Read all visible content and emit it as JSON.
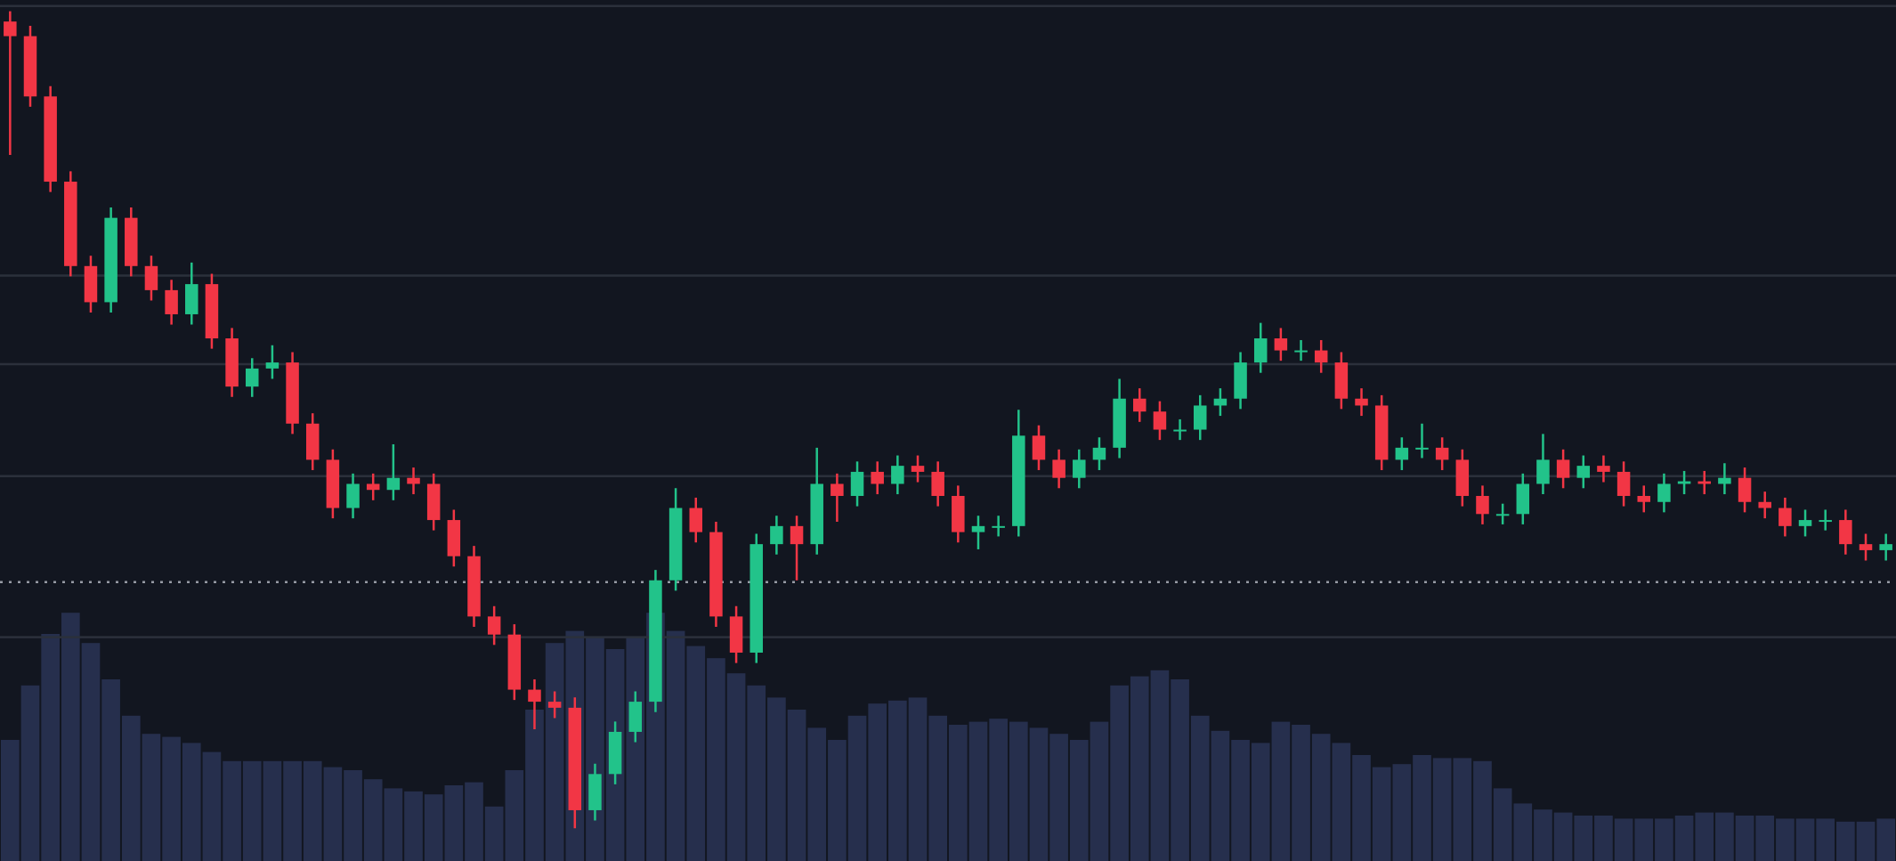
{
  "chart_data": {
    "type": "candlestick",
    "open": [
      97.5,
      95.8,
      88.8,
      78.9,
      69.1,
      64.9,
      74.7,
      69.1,
      66.3,
      63.5,
      67.0,
      60.7,
      55.1,
      57.2,
      57.9,
      50.8,
      46.6,
      41.0,
      43.8,
      43.1,
      44.5,
      43.8,
      39.6,
      35.4,
      28.4,
      26.3,
      19.9,
      18.5,
      17.8,
      5.9,
      10.1,
      15.0,
      18.5,
      32.6,
      41.0,
      38.2,
      28.4,
      24.2,
      36.8,
      38.9,
      36.8,
      43.8,
      42.4,
      45.2,
      43.8,
      45.9,
      45.2,
      42.4,
      38.2,
      38.9,
      38.9,
      49.4,
      46.6,
      44.5,
      46.6,
      48.0,
      53.7,
      52.2,
      50.1,
      50.1,
      52.9,
      53.7,
      57.9,
      60.7,
      59.3,
      59.3,
      57.9,
      53.7,
      52.9,
      46.6,
      48.0,
      48.0,
      46.6,
      42.4,
      40.3,
      40.3,
      43.8,
      46.6,
      44.5,
      45.9,
      45.2,
      42.4,
      41.7,
      43.8,
      44.1,
      43.8,
      44.5,
      41.7,
      41.0,
      38.9,
      39.6,
      39.6,
      36.8,
      36.1
    ],
    "high": [
      98.7,
      97.0,
      90.0,
      80.1,
      70.3,
      75.9,
      75.9,
      70.3,
      67.5,
      69.5,
      68.2,
      61.9,
      58.4,
      59.9,
      59.1,
      52.0,
      47.8,
      45.0,
      45.0,
      48.4,
      45.7,
      45.0,
      40.8,
      36.6,
      29.6,
      27.5,
      21.1,
      19.7,
      19.0,
      11.3,
      16.2,
      19.7,
      33.8,
      43.3,
      42.2,
      39.4,
      29.6,
      38.0,
      40.1,
      40.1,
      48.0,
      45.0,
      46.4,
      46.4,
      47.1,
      47.1,
      46.4,
      43.6,
      40.1,
      40.1,
      52.4,
      50.6,
      47.8,
      47.8,
      49.2,
      56.0,
      54.9,
      53.4,
      51.3,
      54.1,
      54.9,
      59.1,
      62.5,
      61.9,
      60.5,
      60.5,
      59.1,
      54.9,
      54.1,
      49.2,
      50.8,
      49.2,
      47.8,
      43.6,
      41.5,
      45.0,
      49.6,
      47.8,
      47.1,
      47.1,
      46.4,
      43.6,
      45.0,
      45.3,
      45.3,
      46.2,
      45.7,
      42.9,
      42.2,
      40.8,
      40.8,
      40.8,
      38.0,
      38.0
    ],
    "low": [
      82.0,
      87.6,
      77.7,
      67.9,
      63.7,
      63.7,
      67.9,
      65.1,
      62.3,
      62.3,
      59.5,
      53.9,
      53.9,
      56.0,
      49.6,
      45.4,
      39.8,
      39.8,
      41.9,
      41.9,
      42.6,
      38.4,
      34.2,
      27.2,
      25.1,
      18.7,
      15.3,
      16.6,
      3.8,
      4.7,
      8.9,
      13.8,
      17.3,
      31.4,
      37.0,
      27.2,
      23.0,
      23.0,
      35.6,
      32.6,
      35.6,
      39.4,
      41.2,
      42.6,
      42.6,
      44.0,
      41.2,
      37.0,
      36.2,
      37.7,
      37.7,
      45.4,
      43.3,
      43.3,
      45.4,
      46.8,
      51.0,
      48.9,
      48.9,
      48.9,
      51.7,
      52.5,
      56.7,
      58.1,
      58.1,
      56.7,
      52.5,
      51.7,
      45.4,
      45.4,
      46.8,
      45.4,
      41.2,
      39.1,
      39.1,
      39.1,
      42.6,
      43.3,
      43.3,
      44.0,
      41.2,
      40.5,
      40.5,
      42.6,
      42.6,
      42.6,
      40.5,
      39.8,
      37.7,
      37.7,
      38.4,
      35.6,
      34.9,
      34.9
    ],
    "close": [
      95.8,
      88.8,
      78.9,
      69.1,
      64.9,
      74.7,
      69.1,
      66.3,
      63.5,
      67.0,
      60.7,
      55.1,
      57.2,
      57.9,
      50.8,
      46.6,
      41.0,
      43.8,
      43.1,
      44.5,
      43.8,
      39.6,
      35.4,
      28.4,
      26.3,
      19.9,
      18.5,
      17.8,
      5.9,
      10.1,
      15.0,
      18.5,
      32.6,
      41.0,
      38.2,
      28.4,
      24.2,
      36.8,
      38.9,
      36.8,
      43.8,
      42.4,
      45.2,
      43.8,
      45.9,
      45.2,
      42.4,
      38.2,
      38.9,
      38.9,
      49.4,
      46.6,
      44.5,
      46.6,
      48.0,
      53.7,
      52.2,
      50.1,
      50.1,
      52.9,
      53.7,
      57.9,
      60.7,
      59.3,
      59.3,
      57.9,
      53.7,
      52.9,
      46.6,
      48.0,
      48.0,
      46.6,
      42.4,
      40.3,
      40.3,
      43.8,
      46.6,
      44.5,
      45.9,
      45.2,
      42.4,
      41.7,
      43.8,
      44.1,
      43.8,
      44.5,
      41.7,
      41.0,
      38.9,
      39.6,
      39.6,
      36.8,
      36.1,
      36.8
    ],
    "volume": [
      40,
      58,
      75,
      82,
      72,
      60,
      48,
      42,
      41,
      39,
      36,
      33,
      33,
      33,
      33,
      33,
      31,
      30,
      27,
      24,
      23,
      22,
      25,
      26,
      18,
      30,
      50,
      72,
      76,
      74,
      70,
      74,
      82,
      76,
      71,
      67,
      62,
      58,
      54,
      50,
      44,
      40,
      48,
      52,
      53,
      54,
      48,
      45,
      46,
      47,
      46,
      44,
      42,
      40,
      46,
      58,
      61,
      63,
      60,
      48,
      43,
      40,
      39,
      46,
      45,
      42,
      39,
      35,
      31,
      32,
      35,
      34,
      34,
      33,
      24,
      19,
      17,
      16,
      15,
      15,
      14,
      14,
      14,
      15,
      16,
      16,
      15,
      15,
      14,
      14,
      14,
      13,
      13,
      14
    ],
    "ylim": [
      0,
      100
    ],
    "vlim": [
      0,
      100
    ],
    "gridlines": [
      99.3,
      68.0,
      57.7,
      44.7,
      26.0
    ],
    "price_line": 32.4,
    "up_color": "#22c38a",
    "down_color": "#f23645",
    "volume_color": "#262f4d",
    "grid_color": "#2b303b",
    "price_line_color": "#b8bcc6"
  }
}
